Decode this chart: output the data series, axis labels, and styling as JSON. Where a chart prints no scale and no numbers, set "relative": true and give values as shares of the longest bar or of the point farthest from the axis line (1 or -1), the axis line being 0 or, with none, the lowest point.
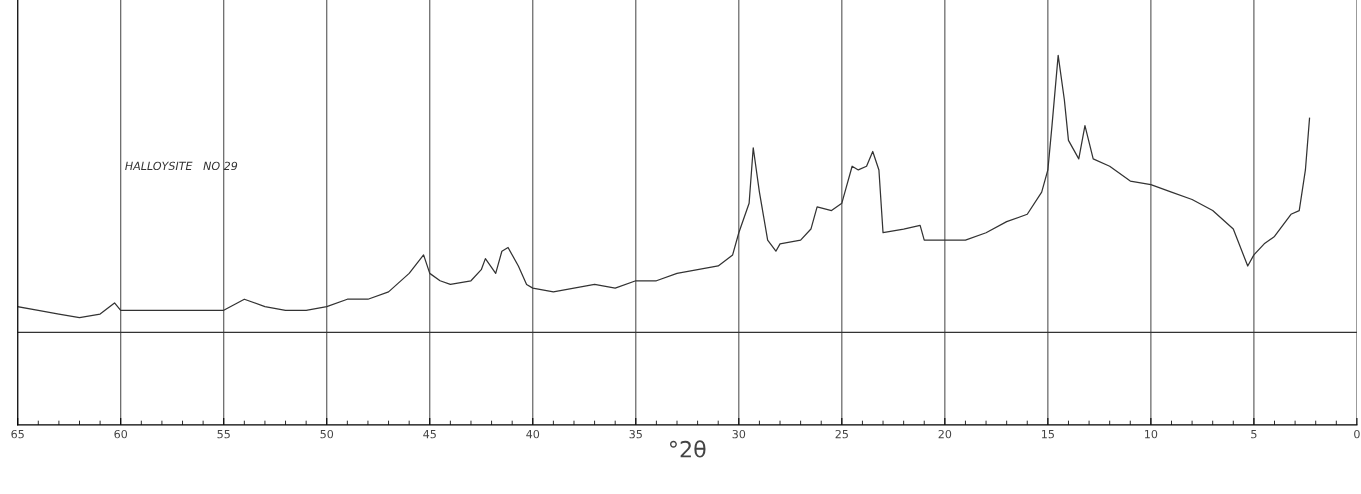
{
  "chart_data": {
    "type": "line",
    "relative": true,
    "xlabel": "°2θ",
    "annotations": [
      "HALLOYSITE   NO 29"
    ],
    "x": [
      65,
      64,
      63,
      62,
      61,
      60.3,
      60,
      59,
      58,
      57,
      56,
      55,
      54,
      53,
      52,
      51,
      50,
      49,
      48,
      47,
      46,
      45.3,
      45,
      44.5,
      44,
      43,
      42.5,
      42.3,
      41.8,
      41.5,
      41.2,
      40.7,
      40.3,
      40,
      39,
      38,
      37,
      36,
      35,
      34,
      33,
      32,
      31,
      30.3,
      30,
      29.5,
      29.3,
      29,
      28.6,
      28.2,
      28,
      27,
      26.5,
      26.2,
      25.5,
      25,
      24.8,
      24.5,
      24.2,
      23.8,
      23.5,
      23.2,
      23,
      22,
      21.2,
      21,
      20,
      19,
      18,
      17,
      16,
      15.3,
      15,
      14.8,
      14.5,
      14.2,
      14,
      13.5,
      13.2,
      12.8,
      12,
      11,
      10,
      9,
      8,
      7,
      6,
      5.3,
      5,
      4.5,
      4,
      3.2,
      2.8,
      2.5,
      2.3
    ],
    "series": [
      {
        "color": "#333333",
        "values": [
          0.32,
          0.31,
          0.3,
          0.29,
          0.3,
          0.33,
          0.31,
          0.31,
          0.31,
          0.31,
          0.31,
          0.31,
          0.34,
          0.32,
          0.31,
          0.31,
          0.32,
          0.34,
          0.34,
          0.36,
          0.41,
          0.46,
          0.41,
          0.39,
          0.38,
          0.39,
          0.42,
          0.45,
          0.41,
          0.47,
          0.48,
          0.43,
          0.38,
          0.37,
          0.36,
          0.37,
          0.38,
          0.37,
          0.39,
          0.39,
          0.41,
          0.42,
          0.43,
          0.46,
          0.52,
          0.6,
          0.75,
          0.63,
          0.5,
          0.47,
          0.49,
          0.5,
          0.53,
          0.59,
          0.58,
          0.6,
          0.64,
          0.7,
          0.69,
          0.7,
          0.74,
          0.69,
          0.52,
          0.53,
          0.54,
          0.5,
          0.5,
          0.5,
          0.52,
          0.55,
          0.57,
          0.63,
          0.69,
          0.81,
          1,
          0.88,
          0.77,
          0.72,
          0.81,
          0.72,
          0.7,
          0.66,
          0.65,
          0.63,
          0.61,
          0.58,
          0.53,
          0.43,
          0.46,
          0.49,
          0.51,
          0.57,
          0.58,
          0.69,
          0.83
        ]
      }
    ],
    "xlim": [
      65,
      0
    ],
    "xticks": [
      65,
      60,
      55,
      50,
      45,
      40,
      35,
      30,
      25,
      20,
      15,
      10,
      5,
      0
    ],
    "grid": "x",
    "ref_lines": [
      {
        "axis": "y",
        "value": 0.25,
        "color": "#333333"
      }
    ]
  }
}
